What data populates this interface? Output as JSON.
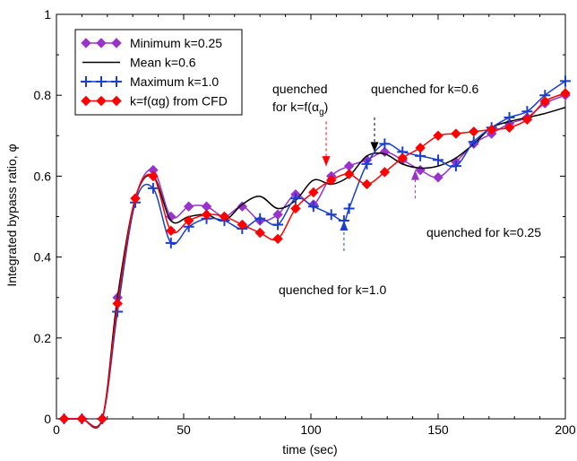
{
  "chart_data": {
    "type": "line",
    "xlabel": "time (sec)",
    "ylabel": "Integrated bypass ratio, φ",
    "xlim": [
      0,
      200
    ],
    "ylim": [
      0,
      1
    ],
    "xticks": [
      0,
      50,
      100,
      150,
      200
    ],
    "yticks": [
      0,
      0.2,
      0.4,
      0.6,
      0.8,
      1
    ],
    "xtick_labels": [
      "0",
      "50",
      "100",
      "150",
      "200"
    ],
    "ytick_labels": [
      "0",
      "0.2",
      "0.4",
      "0.6",
      "0.8",
      "1"
    ],
    "legend_position": "top-left",
    "series": [
      {
        "name": "Minimum k=0.25",
        "color": "#9933cc",
        "marker": "diamond",
        "points": [
          [
            3,
            0
          ],
          [
            10,
            0
          ],
          [
            18,
            0
          ],
          [
            24,
            0.3
          ],
          [
            31,
            0.545
          ],
          [
            38,
            0.615
          ],
          [
            45,
            0.5
          ],
          [
            52,
            0.525
          ],
          [
            59,
            0.525
          ],
          [
            66,
            0.5
          ],
          [
            73,
            0.525
          ],
          [
            80,
            0.49
          ],
          [
            87,
            0.505
          ],
          [
            94,
            0.555
          ],
          [
            101,
            0.53
          ],
          [
            108,
            0.6
          ],
          [
            115,
            0.625
          ],
          [
            122,
            0.64
          ],
          [
            129,
            0.66
          ],
          [
            136,
            0.64
          ],
          [
            143,
            0.615
          ],
          [
            150,
            0.597
          ],
          [
            157,
            0.635
          ],
          [
            164,
            0.68
          ],
          [
            171,
            0.705
          ],
          [
            178,
            0.73
          ],
          [
            185,
            0.745
          ],
          [
            192,
            0.78
          ],
          [
            200,
            0.8
          ]
        ]
      },
      {
        "name": "Mean k=0.6",
        "color": "#000000",
        "marker": "none",
        "points": [
          [
            3,
            0
          ],
          [
            10,
            0
          ],
          [
            18,
            0
          ],
          [
            24,
            0.3
          ],
          [
            31,
            0.545
          ],
          [
            38,
            0.6
          ],
          [
            45,
            0.49
          ],
          [
            52,
            0.5
          ],
          [
            59,
            0.505
          ],
          [
            66,
            0.49
          ],
          [
            73,
            0.53
          ],
          [
            80,
            0.55
          ],
          [
            87,
            0.52
          ],
          [
            94,
            0.54
          ],
          [
            101,
            0.59
          ],
          [
            108,
            0.58
          ],
          [
            115,
            0.6
          ],
          [
            122,
            0.65
          ],
          [
            129,
            0.655
          ],
          [
            136,
            0.63
          ],
          [
            143,
            0.62
          ],
          [
            150,
            0.625
          ],
          [
            157,
            0.645
          ],
          [
            164,
            0.68
          ],
          [
            171,
            0.72
          ],
          [
            178,
            0.735
          ],
          [
            185,
            0.745
          ],
          [
            192,
            0.755
          ],
          [
            200,
            0.77
          ]
        ]
      },
      {
        "name": "Maximum k=1.0",
        "color": "#1a3fcc",
        "marker": "plus",
        "points": [
          [
            3,
            0
          ],
          [
            10,
            0
          ],
          [
            18,
            0
          ],
          [
            24,
            0.265
          ],
          [
            31,
            0.535
          ],
          [
            38,
            0.57
          ],
          [
            45,
            0.435
          ],
          [
            52,
            0.475
          ],
          [
            59,
            0.495
          ],
          [
            66,
            0.49
          ],
          [
            73,
            0.47
          ],
          [
            80,
            0.495
          ],
          [
            87,
            0.48
          ],
          [
            94,
            0.545
          ],
          [
            101,
            0.525
          ],
          [
            108,
            0.505
          ],
          [
            113,
            0.49
          ],
          [
            115,
            0.52
          ],
          [
            122,
            0.63
          ],
          [
            129,
            0.68
          ],
          [
            136,
            0.66
          ],
          [
            143,
            0.65
          ],
          [
            150,
            0.64
          ],
          [
            157,
            0.625
          ],
          [
            164,
            0.685
          ],
          [
            171,
            0.72
          ],
          [
            178,
            0.745
          ],
          [
            185,
            0.76
          ],
          [
            192,
            0.8
          ],
          [
            200,
            0.835
          ]
        ]
      },
      {
        "name": "k=f(αg) from CFD",
        "color": "#ff0000",
        "marker": "diamond",
        "points": [
          [
            3,
            0
          ],
          [
            10,
            0
          ],
          [
            18,
            0
          ],
          [
            24,
            0.285
          ],
          [
            31,
            0.545
          ],
          [
            38,
            0.6
          ],
          [
            45,
            0.465
          ],
          [
            52,
            0.49
          ],
          [
            59,
            0.505
          ],
          [
            66,
            0.5
          ],
          [
            73,
            0.48
          ],
          [
            80,
            0.46
          ],
          [
            87,
            0.445
          ],
          [
            94,
            0.52
          ],
          [
            101,
            0.56
          ],
          [
            108,
            0.59
          ],
          [
            115,
            0.605
          ],
          [
            122,
            0.58
          ],
          [
            129,
            0.61
          ],
          [
            136,
            0.645
          ],
          [
            143,
            0.67
          ],
          [
            150,
            0.7
          ],
          [
            157,
            0.705
          ],
          [
            164,
            0.71
          ],
          [
            171,
            0.715
          ],
          [
            178,
            0.72
          ],
          [
            185,
            0.74
          ],
          [
            192,
            0.785
          ],
          [
            200,
            0.805
          ]
        ]
      }
    ],
    "annotations": [
      {
        "id": "cfd",
        "lines": [
          "quenched",
          "for k=f(α",
          ")"
        ],
        "sub": "g",
        "color": "#ff0000",
        "arrow_from": [
          106,
          0.735
        ],
        "arrow_to": [
          106,
          0.625
        ]
      },
      {
        "id": "k06",
        "text": "quenched for k=0.6",
        "color": "#000000",
        "arrow_from": [
          125,
          0.745
        ],
        "arrow_to": [
          125,
          0.66
        ]
      },
      {
        "id": "k025",
        "text": "quenched for k=0.25",
        "color": "#9933cc",
        "arrow_from": [
          141,
          0.545
        ],
        "arrow_to": [
          141,
          0.615
        ]
      },
      {
        "id": "k10",
        "text": "quenched for k=1.0",
        "color": "#1a3fcc",
        "arrow_from": [
          113,
          0.415
        ],
        "arrow_to": [
          113,
          0.49
        ]
      }
    ]
  }
}
